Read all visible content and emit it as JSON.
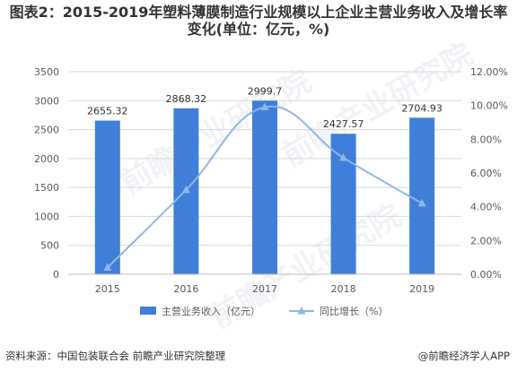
{
  "title": "图表2：2015-2019年塑料薄膜制造行业规模以上企业主营业务收入及增长率变化(单位：亿元，%)",
  "source": "资料来源：中国包装联合会 前瞻产业研究院整理",
  "brand": "@前瞻经济学人APP",
  "watermark": "前瞻产业研究院",
  "colors": {
    "bar": "#3F7FD9",
    "line": "#8FB6E6",
    "grid": "#D9D9D9",
    "axis": "#BFBFBF",
    "text": "#595959"
  },
  "chart_data": {
    "type": "bar",
    "categories": [
      "2015",
      "2016",
      "2017",
      "2018",
      "2019"
    ],
    "series": [
      {
        "name": "主营业务收入（亿元）",
        "type": "bar",
        "axis": "left",
        "values": [
          2655.32,
          2868.32,
          2999.7,
          2427.57,
          2704.93
        ],
        "labels": [
          "2655.32",
          "2868.32",
          "2999.7",
          "2427.57",
          "2704.93"
        ]
      },
      {
        "name": "同比增长（%）",
        "type": "line",
        "axis": "right",
        "values": [
          0.4,
          5.0,
          9.9,
          6.9,
          4.2
        ]
      }
    ],
    "ylim": [
      0,
      3500
    ],
    "yticks": [
      "0",
      "500",
      "1000",
      "1500",
      "2000",
      "2500",
      "3000",
      "3500"
    ],
    "y2lim": [
      0,
      12
    ],
    "y2ticks": [
      "0.00%",
      "2.00%",
      "4.00%",
      "6.00%",
      "8.00%",
      "10.00%",
      "12.00%"
    ],
    "grid": true,
    "legend": "bottom"
  }
}
